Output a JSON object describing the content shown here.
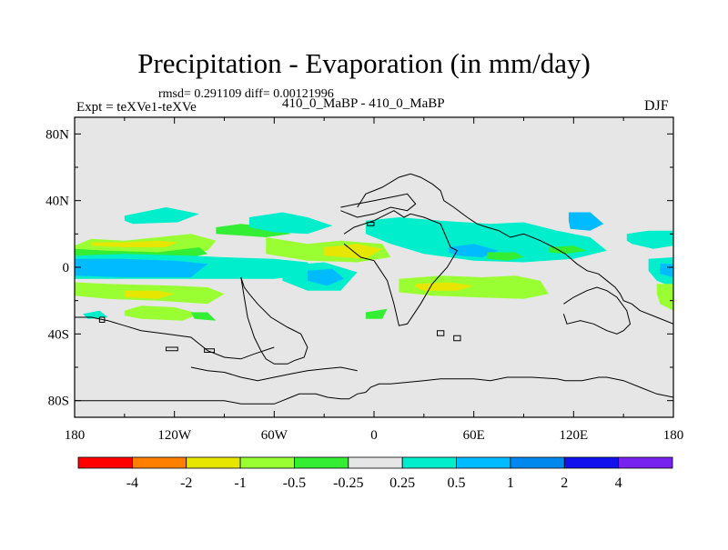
{
  "chart_data": {
    "type": "heatmap",
    "title": "Precipitation - Evaporation (in mm/day)",
    "subtitle_stats": "rmsd= 0.291109 diff= 0.00121996",
    "experiment_label": "Expt = teXVe1-teXVe",
    "case_label": "410_0_MaBP - 410_0_MaBP",
    "season": "DJF",
    "x_ticks": [
      "180",
      "120W",
      "60W",
      "0",
      "60E",
      "120E",
      "180"
    ],
    "x_tick_values": [
      -180,
      -120,
      -60,
      0,
      60,
      120,
      180
    ],
    "y_ticks": [
      "80N",
      "40N",
      "0",
      "40S",
      "80S"
    ],
    "y_tick_values": [
      80,
      40,
      0,
      -40,
      -80
    ],
    "xlim": [
      -180,
      180
    ],
    "ylim": [
      -90,
      90
    ],
    "colorbar": {
      "labels": [
        "-4",
        "-2",
        "-1",
        "-0.5",
        "-0.25",
        "0.25",
        "0.5",
        "1",
        "2",
        "4"
      ],
      "colors": [
        "#ff0000",
        "#ff8000",
        "#e6e600",
        "#99ff33",
        "#33ee33",
        "#e6e6e6",
        "#00eecc",
        "#00bbff",
        "#0088ee",
        "#1111ee",
        "#7722ee"
      ]
    },
    "background_color": "#e6e6e6",
    "regions": [
      {
        "level": "-0.5",
        "color": "#99ff33",
        "lon": [
          -180,
          -170,
          -150,
          -130,
          -110,
          -95,
          -100,
          -120,
          -140,
          -160,
          -180
        ],
        "lat": [
          13,
          17,
          16,
          18,
          20,
          16,
          10,
          9,
          8,
          9,
          10
        ]
      },
      {
        "level": "-1",
        "color": "#e6e600",
        "lon": [
          -170,
          -150,
          -130,
          -118,
          -125,
          -150,
          -170
        ],
        "lat": [
          15,
          15,
          16,
          15,
          12,
          12,
          13
        ]
      },
      {
        "level": "-0.25",
        "color": "#33ee33",
        "lon": [
          -180,
          -160,
          -130,
          -105,
          -100,
          -110,
          -140,
          -180
        ],
        "lat": [
          11,
          10,
          9,
          12,
          8,
          6,
          7,
          7
        ]
      },
      {
        "level": "0.25",
        "color": "#00eecc",
        "lon": [
          -180,
          -150,
          -110,
          -90,
          -60,
          -40,
          -35,
          -60,
          -100,
          -150,
          -180
        ],
        "lat": [
          7,
          8,
          7,
          6,
          5,
          3,
          -4,
          -7,
          -7,
          -7,
          -7
        ]
      },
      {
        "level": "0.5",
        "color": "#00bbff",
        "lon": [
          -180,
          -150,
          -120,
          -100,
          -110,
          -150,
          -180
        ],
        "lat": [
          5,
          5,
          4,
          2,
          -6,
          -6,
          -5
        ]
      },
      {
        "level": "-0.5",
        "color": "#99ff33",
        "lon": [
          -180,
          -160,
          -120,
          -100,
          -90,
          -100,
          -130,
          -160,
          -180
        ],
        "lat": [
          -9,
          -10,
          -11,
          -12,
          -16,
          -22,
          -20,
          -19,
          -17
        ]
      },
      {
        "level": "-1",
        "color": "#e6e600",
        "lon": [
          -150,
          -130,
          -120,
          -130,
          -150
        ],
        "lat": [
          -14,
          -14,
          -16,
          -19,
          -18
        ]
      },
      {
        "level": "-0.5",
        "color": "#99ff33",
        "lon": [
          -150,
          -140,
          -120,
          -105,
          -115,
          -140,
          -150
        ],
        "lat": [
          -26,
          -23,
          -24,
          -28,
          -32,
          -31,
          -29
        ]
      },
      {
        "level": "0.25",
        "color": "#00eecc",
        "lon": [
          -150,
          -125,
          -105,
          -118,
          -145,
          -150
        ],
        "lat": [
          31,
          36,
          32,
          27,
          26,
          28
        ]
      },
      {
        "level": "-0.25",
        "color": "#33ee33",
        "lon": [
          -95,
          -80,
          -60,
          -50,
          -65,
          -95
        ],
        "lat": [
          24,
          26,
          24,
          20,
          18,
          20
        ]
      },
      {
        "level": "0.25",
        "color": "#00eecc",
        "lon": [
          -75,
          -55,
          -40,
          -25,
          -40,
          -60,
          -75
        ],
        "lat": [
          30,
          33,
          30,
          25,
          20,
          21,
          24
        ]
      },
      {
        "level": "-0.5",
        "color": "#99ff33",
        "lon": [
          -65,
          -40,
          -20,
          5,
          10,
          -10,
          -40,
          -65
        ],
        "lat": [
          18,
          14,
          16,
          14,
          6,
          3,
          4,
          8
        ]
      },
      {
        "level": "-1",
        "color": "#e6e600",
        "lon": [
          -30,
          -10,
          5,
          -5,
          -30
        ],
        "lat": [
          12,
          14,
          11,
          5,
          7
        ]
      },
      {
        "level": "0.25",
        "color": "#00eecc",
        "lon": [
          -55,
          -30,
          -10,
          -20,
          -40,
          -55
        ],
        "lat": [
          1,
          3,
          -3,
          -14,
          -14,
          -8
        ]
      },
      {
        "level": "0.5",
        "color": "#00bbff",
        "lon": [
          -40,
          -25,
          -18,
          -28,
          -40
        ],
        "lat": [
          -2,
          -1,
          -7,
          -11,
          -8
        ]
      },
      {
        "level": "0.25",
        "color": "#00eecc",
        "lon": [
          -5,
          15,
          40,
          70,
          90,
          110,
          130,
          140,
          120,
          90,
          60,
          30,
          10,
          -5
        ],
        "lat": [
          28,
          30,
          28,
          26,
          27,
          22,
          18,
          10,
          5,
          3,
          4,
          8,
          14,
          20
        ]
      },
      {
        "level": "0.5",
        "color": "#00bbff",
        "lon": [
          45,
          60,
          75,
          65,
          50,
          45
        ],
        "lat": [
          12,
          14,
          10,
          6,
          7,
          9
        ]
      },
      {
        "level": "0.5",
        "color": "#00bbff",
        "lon": [
          117,
          130,
          138,
          130,
          118,
          117
        ],
        "lat": [
          33,
          33,
          26,
          22,
          23,
          28
        ]
      },
      {
        "level": "-0.25",
        "color": "#33ee33",
        "lon": [
          68,
          85,
          90,
          80,
          68
        ],
        "lat": [
          9,
          9,
          6,
          4,
          5
        ]
      },
      {
        "level": "-0.5",
        "color": "#99ff33",
        "lon": [
          15,
          40,
          65,
          85,
          100,
          105,
          90,
          60,
          35,
          15
        ],
        "lat": [
          -7,
          -5,
          -6,
          -5,
          -8,
          -16,
          -19,
          -18,
          -17,
          -15
        ]
      },
      {
        "level": "-1",
        "color": "#e6e600",
        "lon": [
          25,
          45,
          60,
          50,
          30,
          25
        ],
        "lat": [
          -10,
          -9,
          -11,
          -14,
          -14,
          -12
        ]
      },
      {
        "level": "0.25",
        "color": "#00eecc",
        "lon": [
          152,
          165,
          180,
          180,
          168,
          155,
          152
        ],
        "lat": [
          20,
          22,
          22,
          13,
          11,
          14,
          16
        ]
      },
      {
        "level": "0.25",
        "color": "#00eecc",
        "lon": [
          165,
          180,
          180,
          170,
          165
        ],
        "lat": [
          5,
          6,
          -12,
          -8,
          -2
        ]
      },
      {
        "level": "0.5",
        "color": "#00bbff",
        "lon": [
          172,
          180,
          180,
          172
        ],
        "lat": [
          2,
          2,
          -6,
          -4
        ]
      },
      {
        "level": "-0.5",
        "color": "#99ff33",
        "lon": [
          170,
          180,
          180,
          172,
          170
        ],
        "lat": [
          -10,
          -10,
          -26,
          -22,
          -16
        ]
      },
      {
        "level": "-0.25",
        "color": "#33ee33",
        "lon": [
          105,
          120,
          128,
          115,
          105
        ],
        "lat": [
          12,
          13,
          10,
          8,
          9
        ]
      },
      {
        "level": "-0.25",
        "color": "#33ee33",
        "lon": [
          -110,
          -100,
          -95,
          -108
        ],
        "lat": [
          -27,
          -27,
          -32,
          -31
        ]
      },
      {
        "level": "-0.25",
        "color": "#33ee33",
        "lon": [
          -5,
          8,
          5,
          -5
        ],
        "lat": [
          -27,
          -25,
          -31,
          -31
        ]
      },
      {
        "level": "0.25",
        "color": "#00eecc",
        "lon": [
          -175,
          -165,
          -160,
          -172
        ],
        "lat": [
          -28,
          -26,
          -30,
          -31
        ]
      }
    ],
    "coastlines": [
      {
        "lon": [
          -180,
          -175,
          -165,
          -160,
          -155,
          -150,
          -145,
          -140,
          -135,
          -130,
          -125,
          -120,
          -115,
          -108,
          -100,
          -90,
          -80,
          -70,
          -60,
          -55,
          -50,
          -45,
          -40,
          -35,
          -28,
          -20,
          -15,
          -10,
          -5,
          -2,
          3,
          10,
          20,
          30,
          40,
          50,
          60,
          70,
          80,
          95,
          110,
          115,
          125,
          135,
          140,
          150,
          160,
          170,
          180
        ],
        "lat": [
          -80,
          -80,
          -80,
          -80,
          -80,
          -80,
          -80,
          -80,
          -80,
          -80,
          -80,
          -80,
          -80,
          -80,
          -80,
          -80,
          -82,
          -82,
          -82,
          -80,
          -78,
          -76,
          -76,
          -76,
          -78,
          -79,
          -79,
          -76,
          -75,
          -72,
          -70,
          -70,
          -69,
          -68,
          -67,
          -67,
          -67,
          -68,
          -66,
          -66,
          -67,
          -68,
          -68,
          -66,
          -66,
          -68,
          -72,
          -76,
          -78
        ]
      }
    ],
    "continent_outlines": [
      {
        "name": "north-america",
        "lon": [
          -180,
          -170,
          -160,
          -150,
          -140,
          -125,
          -110,
          -100,
          -90,
          -80,
          -72,
          -60
        ],
        "lat": [
          -30,
          -30,
          -32,
          -35,
          -38,
          -40,
          -42,
          -50,
          -54,
          -55,
          -52,
          -48
        ]
      },
      {
        "name": "south-america",
        "lon": [
          -80,
          -78,
          -75,
          -70,
          -62,
          -52,
          -44,
          -40,
          -42,
          -48,
          -52,
          -60,
          -65,
          -68,
          -72,
          -76,
          -78,
          -80
        ],
        "lat": [
          -6,
          -12,
          -16,
          -22,
          -30,
          -36,
          -40,
          -48,
          -54,
          -56,
          -58,
          -58,
          -55,
          -50,
          -42,
          -30,
          -18,
          -6
        ]
      },
      {
        "name": "africa",
        "lon": [
          -18,
          -12,
          0,
          8,
          12,
          15,
          18,
          22,
          30,
          40,
          46,
          50,
          44,
          35,
          28,
          20,
          15,
          12,
          8,
          0,
          -8,
          -18
        ],
        "lat": [
          20,
          24,
          28,
          32,
          34,
          32,
          30,
          32,
          30,
          26,
          12,
          10,
          0,
          -10,
          -22,
          -34,
          -35,
          -22,
          -8,
          4,
          6,
          14
        ]
      },
      {
        "name": "eurasia",
        "lon": [
          -10,
          -5,
          5,
          15,
          22,
          28,
          35,
          40,
          42,
          48,
          56,
          62,
          68,
          75,
          82,
          90,
          100,
          108,
          115,
          122,
          128,
          135,
          140,
          145,
          148,
          150,
          155,
          160,
          170,
          180
        ],
        "lat": [
          36,
          44,
          48,
          54,
          56,
          54,
          50,
          46,
          40,
          36,
          30,
          26,
          24,
          22,
          18,
          20,
          16,
          12,
          8,
          2,
          -2,
          -4,
          -8,
          -12,
          -16,
          -20,
          -22,
          -26,
          -30,
          -34
        ]
      },
      {
        "name": "australia",
        "lon": [
          114,
          120,
          128,
          134,
          140,
          146,
          152,
          154,
          150,
          146,
          140,
          132,
          124,
          116,
          114
        ],
        "lat": [
          -22,
          -18,
          -14,
          -12,
          -14,
          -18,
          -26,
          -34,
          -38,
          -40,
          -38,
          -34,
          -32,
          -34,
          -28
        ]
      },
      {
        "name": "antarctic-peninsula",
        "lon": [
          -110,
          -100,
          -90,
          -80,
          -70,
          -60,
          -50,
          -40,
          -30,
          -20,
          -10
        ],
        "lat": [
          -60,
          -62,
          -63,
          -66,
          -68,
          -66,
          -64,
          -62,
          -61,
          -60,
          -62
        ]
      },
      {
        "name": "greenland-island",
        "lon": [
          -20,
          -10,
          0,
          10,
          20,
          25,
          20,
          10,
          0,
          -10,
          -20
        ],
        "lat": [
          36,
          38,
          40,
          42,
          44,
          38,
          34,
          36,
          32,
          30,
          34
        ]
      }
    ],
    "small_islands": [
      {
        "lon": [
          -165,
          -162,
          -162,
          -165
        ],
        "lat": [
          -30,
          -30,
          -33,
          -33
        ]
      },
      {
        "lon": [
          -125,
          -118,
          -118,
          -125
        ],
        "lat": [
          -48,
          -48,
          -50,
          -50
        ]
      },
      {
        "lon": [
          -102,
          -96,
          -96,
          -102
        ],
        "lat": [
          -49,
          -49,
          -51,
          -51
        ]
      },
      {
        "lon": [
          -4,
          0,
          0,
          -4
        ],
        "lat": [
          27,
          27,
          25,
          25
        ]
      },
      {
        "lon": [
          48,
          52,
          52,
          48
        ],
        "lat": [
          -41,
          -41,
          -44,
          -44
        ]
      },
      {
        "lon": [
          38,
          42,
          42,
          38
        ],
        "lat": [
          -38,
          -38,
          -41,
          -41
        ]
      }
    ]
  }
}
